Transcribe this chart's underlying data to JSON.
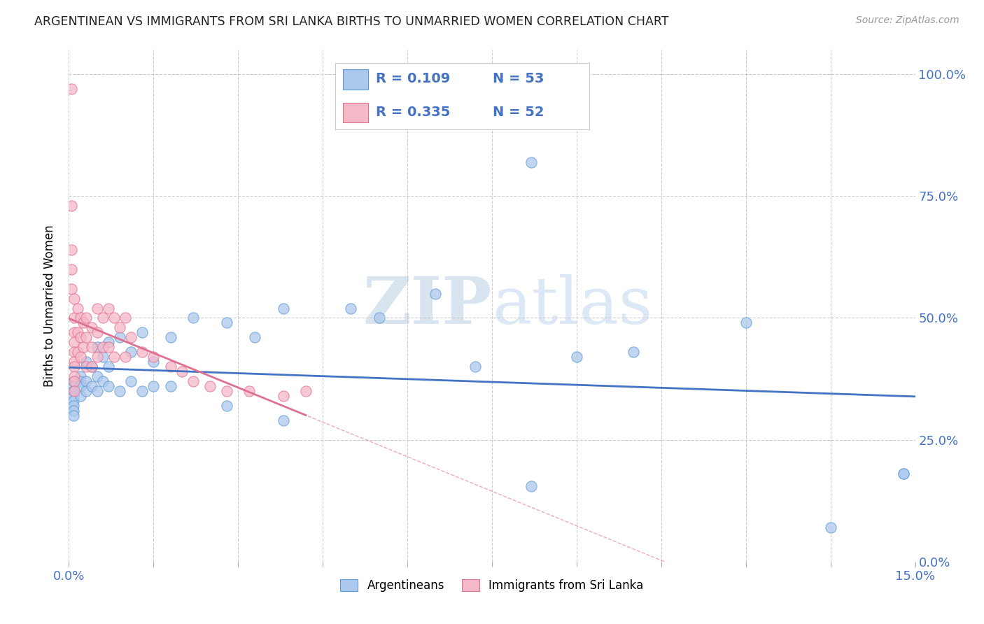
{
  "title": "ARGENTINEAN VS IMMIGRANTS FROM SRI LANKA BIRTHS TO UNMARRIED WOMEN CORRELATION CHART",
  "source": "Source: ZipAtlas.com",
  "ylabel": "Births to Unmarried Women",
  "yticks": [
    "0.0%",
    "25.0%",
    "50.0%",
    "75.0%",
    "100.0%"
  ],
  "ytick_vals": [
    0.0,
    0.25,
    0.5,
    0.75,
    1.0
  ],
  "xmin": 0.0,
  "xmax": 0.15,
  "ymin": 0.0,
  "ymax": 1.05,
  "blue_color": "#adc8ed",
  "pink_color": "#f5b8c8",
  "blue_edge_color": "#5b9bd5",
  "pink_edge_color": "#e07090",
  "blue_line_color": "#4472c4",
  "pink_line_color": "#e07090",
  "watermark_zip": "ZIP",
  "watermark_atlas": "atlas",
  "blue_scatter_x": [
    0.0008,
    0.0008,
    0.0008,
    0.0008,
    0.0008,
    0.0008,
    0.0008,
    0.0008,
    0.002,
    0.002,
    0.002,
    0.002,
    0.003,
    0.003,
    0.003,
    0.004,
    0.004,
    0.005,
    0.005,
    0.005,
    0.006,
    0.006,
    0.007,
    0.007,
    0.007,
    0.009,
    0.009,
    0.011,
    0.011,
    0.013,
    0.013,
    0.015,
    0.015,
    0.018,
    0.018,
    0.022,
    0.028,
    0.028,
    0.033,
    0.038,
    0.038,
    0.05,
    0.055,
    0.065,
    0.072,
    0.082,
    0.082,
    0.09,
    0.1,
    0.12,
    0.135,
    0.148,
    0.148
  ],
  "blue_scatter_y": [
    0.37,
    0.36,
    0.35,
    0.34,
    0.33,
    0.32,
    0.31,
    0.3,
    0.38,
    0.37,
    0.36,
    0.34,
    0.41,
    0.37,
    0.35,
    0.4,
    0.36,
    0.44,
    0.38,
    0.35,
    0.42,
    0.37,
    0.45,
    0.4,
    0.36,
    0.46,
    0.35,
    0.43,
    0.37,
    0.47,
    0.35,
    0.41,
    0.36,
    0.46,
    0.36,
    0.5,
    0.49,
    0.32,
    0.46,
    0.52,
    0.29,
    0.52,
    0.5,
    0.55,
    0.4,
    0.82,
    0.155,
    0.42,
    0.43,
    0.49,
    0.07,
    0.18,
    0.18
  ],
  "pink_scatter_x": [
    0.0005,
    0.0005,
    0.0005,
    0.0005,
    0.0005,
    0.001,
    0.001,
    0.001,
    0.001,
    0.001,
    0.001,
    0.001,
    0.001,
    0.001,
    0.001,
    0.0015,
    0.0015,
    0.0015,
    0.002,
    0.002,
    0.002,
    0.0025,
    0.0025,
    0.003,
    0.003,
    0.003,
    0.004,
    0.004,
    0.004,
    0.005,
    0.005,
    0.005,
    0.006,
    0.006,
    0.007,
    0.007,
    0.008,
    0.008,
    0.009,
    0.01,
    0.01,
    0.011,
    0.013,
    0.015,
    0.018,
    0.02,
    0.022,
    0.025,
    0.028,
    0.032,
    0.038,
    0.042
  ],
  "pink_scatter_y": [
    0.97,
    0.73,
    0.64,
    0.6,
    0.56,
    0.54,
    0.5,
    0.47,
    0.45,
    0.43,
    0.41,
    0.4,
    0.38,
    0.37,
    0.35,
    0.52,
    0.47,
    0.43,
    0.5,
    0.46,
    0.42,
    0.49,
    0.44,
    0.5,
    0.46,
    0.4,
    0.48,
    0.44,
    0.4,
    0.52,
    0.47,
    0.42,
    0.5,
    0.44,
    0.52,
    0.44,
    0.5,
    0.42,
    0.48,
    0.5,
    0.42,
    0.46,
    0.43,
    0.42,
    0.4,
    0.39,
    0.37,
    0.36,
    0.35,
    0.35,
    0.34,
    0.35
  ]
}
